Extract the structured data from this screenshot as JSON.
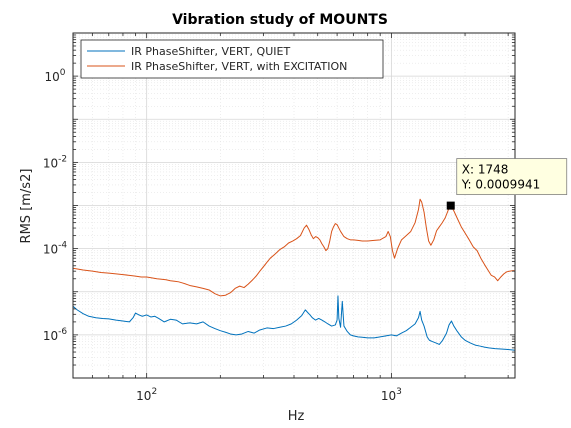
{
  "chart_data": {
    "type": "line",
    "title": "Vibration study of MOUNTS",
    "xlabel": "Hz",
    "ylabel": "RMS [m/s2]",
    "x_scale": "log",
    "y_scale": "log",
    "xlim": [
      50,
      3200
    ],
    "ylim": [
      1e-07,
      10
    ],
    "x_ticks": [
      {
        "base": "10",
        "exp": "2",
        "value": 100
      },
      {
        "base": "10",
        "exp": "3",
        "value": 1000
      }
    ],
    "y_ticks": [
      {
        "base": "10",
        "exp": "0",
        "value": 1
      },
      {
        "base": "10",
        "exp": "-2",
        "value": 0.01
      },
      {
        "base": "10",
        "exp": "-4",
        "value": 0.0001
      },
      {
        "base": "10",
        "exp": "-6",
        "value": 1e-06
      }
    ],
    "grid": true,
    "legend_position": "top-left",
    "series": [
      {
        "name": "IR PhaseShifter, VERT, QUIET",
        "color": "#0072BD",
        "points": [
          [
            50,
            4.6e-06
          ],
          [
            52,
            3.8e-06
          ],
          [
            55,
            3.1e-06
          ],
          [
            58,
            2.7e-06
          ],
          [
            62,
            2.5e-06
          ],
          [
            66,
            2.4e-06
          ],
          [
            70,
            2.35e-06
          ],
          [
            75,
            2.2e-06
          ],
          [
            80,
            2.1e-06
          ],
          [
            85,
            2e-06
          ],
          [
            88,
            2.5e-06
          ],
          [
            90,
            3.2e-06
          ],
          [
            93,
            2.9e-06
          ],
          [
            96,
            2.7e-06
          ],
          [
            100,
            2.9e-06
          ],
          [
            104,
            2.6e-06
          ],
          [
            108,
            2.7e-06
          ],
          [
            112,
            2.4e-06
          ],
          [
            118,
            2e-06
          ],
          [
            125,
            2.3e-06
          ],
          [
            132,
            2.2e-06
          ],
          [
            140,
            1.8e-06
          ],
          [
            150,
            1.9e-06
          ],
          [
            160,
            1.8e-06
          ],
          [
            170,
            2e-06
          ],
          [
            180,
            1.6e-06
          ],
          [
            190,
            1.4e-06
          ],
          [
            200,
            1.25e-06
          ],
          [
            210,
            1.15e-06
          ],
          [
            220,
            1.05e-06
          ],
          [
            232,
            1e-06
          ],
          [
            245,
            1.05e-06
          ],
          [
            260,
            1.2e-06
          ],
          [
            275,
            1.1e-06
          ],
          [
            290,
            1.3e-06
          ],
          [
            310,
            1.45e-06
          ],
          [
            330,
            1.4e-06
          ],
          [
            350,
            1.5e-06
          ],
          [
            370,
            1.6e-06
          ],
          [
            390,
            1.8e-06
          ],
          [
            410,
            2.2e-06
          ],
          [
            430,
            2.8e-06
          ],
          [
            445,
            3.8e-06
          ],
          [
            455,
            3.3e-06
          ],
          [
            465,
            2.9e-06
          ],
          [
            475,
            2.5e-06
          ],
          [
            490,
            2.2e-06
          ],
          [
            505,
            2.4e-06
          ],
          [
            520,
            2.2e-06
          ],
          [
            535,
            2e-06
          ],
          [
            550,
            1.8e-06
          ],
          [
            570,
            1.6e-06
          ],
          [
            590,
            1.7e-06
          ],
          [
            600,
            2.2e-06
          ],
          [
            605,
            8e-06
          ],
          [
            610,
            2.4e-06
          ],
          [
            620,
            1.5e-06
          ],
          [
            630,
            6e-06
          ],
          [
            640,
            1.6e-06
          ],
          [
            660,
            1.2e-06
          ],
          [
            680,
            1e-06
          ],
          [
            700,
            9.5e-07
          ],
          [
            730,
            9e-07
          ],
          [
            760,
            8.8e-07
          ],
          [
            800,
            8.5e-07
          ],
          [
            850,
            8.5e-07
          ],
          [
            900,
            9e-07
          ],
          [
            950,
            9.5e-07
          ],
          [
            1000,
            1e-06
          ],
          [
            1050,
            9.5e-07
          ],
          [
            1100,
            1.1e-06
          ],
          [
            1150,
            1.25e-06
          ],
          [
            1200,
            1.5e-06
          ],
          [
            1250,
            1.8e-06
          ],
          [
            1290,
            2.5e-06
          ],
          [
            1310,
            3.5e-06
          ],
          [
            1330,
            2.2e-06
          ],
          [
            1360,
            1.6e-06
          ],
          [
            1400,
            9e-07
          ],
          [
            1430,
            7.5e-07
          ],
          [
            1470,
            7e-07
          ],
          [
            1520,
            6.5e-07
          ],
          [
            1570,
            6e-07
          ],
          [
            1620,
            7.5e-07
          ],
          [
            1680,
            1.1e-06
          ],
          [
            1720,
            1.7e-06
          ],
          [
            1760,
            2.1e-06
          ],
          [
            1800,
            1.6e-06
          ],
          [
            1860,
            1.2e-06
          ],
          [
            1930,
            9e-07
          ],
          [
            2000,
            7.5e-07
          ],
          [
            2100,
            6.5e-07
          ],
          [
            2200,
            5.8e-07
          ],
          [
            2300,
            5.5e-07
          ],
          [
            2400,
            5.2e-07
          ],
          [
            2500,
            5e-07
          ],
          [
            2650,
            4.8e-07
          ],
          [
            2800,
            4.7e-07
          ],
          [
            2950,
            4.6e-07
          ],
          [
            3100,
            4.5e-07
          ],
          [
            3200,
            4.4e-07
          ]
        ]
      },
      {
        "name": "IR PhaseShifter, VERT, with EXCITATION",
        "color": "#D95319",
        "points": [
          [
            50,
            3.5e-05
          ],
          [
            55,
            3.2e-05
          ],
          [
            60,
            3e-05
          ],
          [
            65,
            2.8e-05
          ],
          [
            70,
            2.7e-05
          ],
          [
            75,
            2.6e-05
          ],
          [
            80,
            2.5e-05
          ],
          [
            85,
            2.4e-05
          ],
          [
            90,
            2.3e-05
          ],
          [
            95,
            2.2e-05
          ],
          [
            100,
            2.2e-05
          ],
          [
            105,
            2.1e-05
          ],
          [
            110,
            2e-05
          ],
          [
            115,
            1.95e-05
          ],
          [
            120,
            1.9e-05
          ],
          [
            125,
            1.8e-05
          ],
          [
            130,
            1.75e-05
          ],
          [
            135,
            1.7e-05
          ],
          [
            140,
            1.6e-05
          ],
          [
            145,
            1.5e-05
          ],
          [
            150,
            1.4e-05
          ],
          [
            160,
            1.3e-05
          ],
          [
            170,
            1.2e-05
          ],
          [
            180,
            1.1e-05
          ],
          [
            190,
            9e-06
          ],
          [
            200,
            8e-06
          ],
          [
            210,
            8.3e-06
          ],
          [
            220,
            9.5e-06
          ],
          [
            230,
            1.2e-05
          ],
          [
            240,
            1.35e-05
          ],
          [
            250,
            1.25e-05
          ],
          [
            260,
            1.5e-05
          ],
          [
            270,
            1.85e-05
          ],
          [
            280,
            2.3e-05
          ],
          [
            290,
            3e-05
          ],
          [
            300,
            3.8e-05
          ],
          [
            310,
            4.8e-05
          ],
          [
            320,
            6e-05
          ],
          [
            335,
            7.5e-05
          ],
          [
            350,
            9.5e-05
          ],
          [
            365,
            0.00011
          ],
          [
            380,
            0.000135
          ],
          [
            395,
            0.00015
          ],
          [
            410,
            0.00017
          ],
          [
            425,
            0.0002
          ],
          [
            440,
            0.0003
          ],
          [
            450,
            0.00035
          ],
          [
            460,
            0.00028
          ],
          [
            470,
            0.00021
          ],
          [
            480,
            0.00017
          ],
          [
            490,
            0.00019
          ],
          [
            500,
            0.00018
          ],
          [
            510,
            0.00016
          ],
          [
            520,
            0.00013
          ],
          [
            530,
            0.00011
          ],
          [
            540,
            9e-05
          ],
          [
            550,
            0.0001
          ],
          [
            560,
            0.00015
          ],
          [
            570,
            0.00025
          ],
          [
            580,
            0.00032
          ],
          [
            590,
            0.00038
          ],
          [
            600,
            0.00036
          ],
          [
            610,
            0.0003
          ],
          [
            620,
            0.00025
          ],
          [
            640,
            0.00019
          ],
          [
            660,
            0.00017
          ],
          [
            680,
            0.00016
          ],
          [
            700,
            0.00016
          ],
          [
            730,
            0.000155
          ],
          [
            760,
            0.00015
          ],
          [
            800,
            0.00015
          ],
          [
            850,
            0.000155
          ],
          [
            900,
            0.00016
          ],
          [
            950,
            0.00019
          ],
          [
            970,
            0.00025
          ],
          [
            990,
            0.00019
          ],
          [
            1010,
            9e-05
          ],
          [
            1030,
            6e-05
          ],
          [
            1060,
            0.0001
          ],
          [
            1100,
            0.00016
          ],
          [
            1150,
            0.0002
          ],
          [
            1200,
            0.00025
          ],
          [
            1250,
            0.0004
          ],
          [
            1290,
            0.0008
          ],
          [
            1310,
            0.0014
          ],
          [
            1330,
            0.0012
          ],
          [
            1360,
            0.0007
          ],
          [
            1390,
            0.0003
          ],
          [
            1420,
            0.00015
          ],
          [
            1450,
            0.00012
          ],
          [
            1490,
            0.00016
          ],
          [
            1530,
            0.00026
          ],
          [
            1570,
            0.00032
          ],
          [
            1610,
            0.00039
          ],
          [
            1660,
            0.00052
          ],
          [
            1710,
            0.0008
          ],
          [
            1748,
            0.0009941
          ],
          [
            1800,
            0.00075
          ],
          [
            1860,
            0.0005
          ],
          [
            1930,
            0.00032
          ],
          [
            2000,
            0.00023
          ],
          [
            2080,
            0.00016
          ],
          [
            2160,
            0.00011
          ],
          [
            2240,
            9e-05
          ],
          [
            2320,
            6e-05
          ],
          [
            2400,
            4.3e-05
          ],
          [
            2480,
            3.2e-05
          ],
          [
            2560,
            2.4e-05
          ],
          [
            2640,
            2.2e-05
          ],
          [
            2720,
            1.8e-05
          ],
          [
            2800,
            2.2e-05
          ],
          [
            2880,
            2.6e-05
          ],
          [
            2960,
            2.9e-05
          ],
          [
            3050,
            3e-05
          ],
          [
            3150,
            3.1e-05
          ],
          [
            3200,
            3e-05
          ]
        ]
      }
    ],
    "datatip": {
      "x": 1748,
      "y": 0.0009941,
      "x_text": "X: 1748",
      "y_text": "Y: 0.0009941"
    }
  }
}
